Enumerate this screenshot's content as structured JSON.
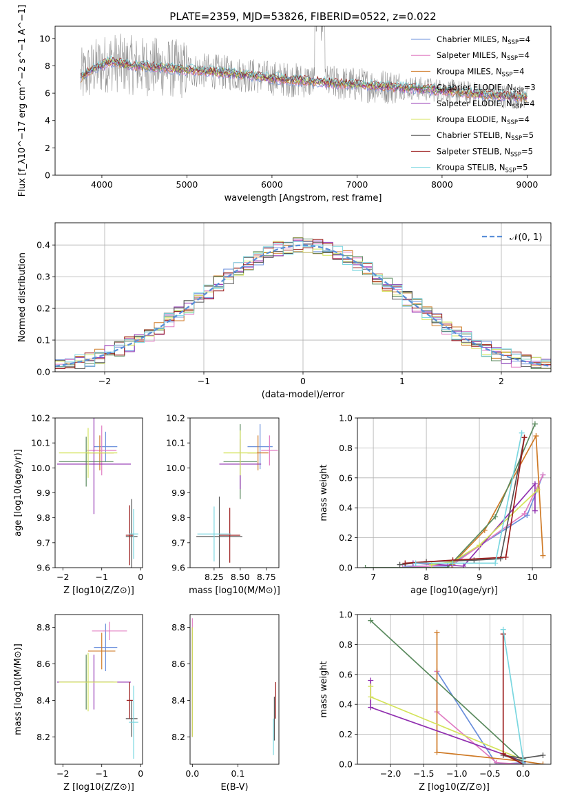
{
  "figure": {
    "title": "PLATE=2359, MJD=53826, FIBERID=0522, z=0.022",
    "colors": [
      "#6a8fdc",
      "#e07bc2",
      "#cf7a26",
      "#5a8a5e",
      "#9030b0",
      "#d4e35a",
      "#555555",
      "#9b1c1c",
      "#7ad7e0"
    ]
  },
  "chart_data": [
    {
      "id": "spectrum",
      "type": "line",
      "title": "PLATE=2359, MJD=53826, FIBERID=0522, z=0.022",
      "xlabel": "wavelength [Angstrom, rest frame]",
      "ylabel": "Flux [f_λ10^−17 erg cm^−2 s^−1 A^−1]",
      "xlim": [
        3450,
        9280
      ],
      "ylim": [
        0,
        10.9
      ],
      "xticks": [
        4000,
        5000,
        6000,
        7000,
        8000,
        9000
      ],
      "yticks": [
        0,
        2,
        4,
        6,
        8,
        10
      ],
      "legend_position": "upper-right",
      "data_color": "#909090",
      "continuum": {
        "x": [
          3750,
          3900,
          4100,
          4400,
          4700,
          5000,
          5300,
          5600,
          6000,
          6400,
          6800,
          7200,
          7600,
          8000,
          8400,
          8800,
          9000
        ],
        "y": [
          7.1,
          7.8,
          8.3,
          8.0,
          7.9,
          7.7,
          7.6,
          7.4,
          7.1,
          6.9,
          6.7,
          6.55,
          6.4,
          6.2,
          5.95,
          5.75,
          5.7
        ]
      },
      "series": [
        {
          "name": "Chabrier MILES",
          "nssp": "4"
        },
        {
          "name": "Salpeter MILES",
          "nssp": "4"
        },
        {
          "name": "Kroupa MILES",
          "nssp": "4"
        },
        {
          "name": "Chabrier ELODIE",
          "nssp": "3"
        },
        {
          "name": "Salpeter ELODIE",
          "nssp": "4"
        },
        {
          "name": "Kroupa ELODIE",
          "nssp": "4"
        },
        {
          "name": "Chabrier STELIB",
          "nssp": "5"
        },
        {
          "name": "Salpeter STELIB",
          "nssp": "5"
        },
        {
          "name": "Kroupa STELIB",
          "nssp": "5"
        }
      ]
    },
    {
      "id": "residuals",
      "type": "bar",
      "xlabel": "(data-model)/error",
      "ylabel": "Normed distribution",
      "xlim": [
        -2.5,
        2.5
      ],
      "ylim": [
        0,
        0.47
      ],
      "xticks": [
        -2,
        -1,
        0,
        1,
        2
      ],
      "yticks": [
        0.0,
        0.1,
        0.2,
        0.3,
        0.4
      ],
      "legend": "𝒩(0, 1)",
      "bin_width": 0.1
    },
    {
      "id": "age_vs_Z",
      "type": "scatter",
      "xlabel": "Z [log10(Z/Z⊙)]",
      "ylabel": "age [log10(age/yr)]",
      "xlim": [
        -2.2,
        0.05
      ],
      "ylim": [
        9.6,
        10.2
      ],
      "xticks": [
        -2,
        -1,
        0
      ],
      "yticks": [
        9.6,
        9.7,
        9.8,
        9.9,
        10.0,
        10.1,
        10.2
      ],
      "points": [
        {
          "x": -0.9,
          "y": 10.085,
          "xerr": 0.3,
          "yerr": 0.06
        },
        {
          "x": -1.0,
          "y": 10.07,
          "xerr": 0.38,
          "yerr": 0.1
        },
        {
          "x": -1.05,
          "y": 10.06,
          "xerr": 0.36,
          "yerr": 0.07
        },
        {
          "x": -1.4,
          "y": 10.025,
          "xerr": 0.7,
          "yerr": 0.1
        },
        {
          "x": -1.2,
          "y": 10.015,
          "xerr": 0.95,
          "yerr": 0.2
        },
        {
          "x": -1.35,
          "y": 10.06,
          "xerr": 0.75,
          "yerr": 0.1
        },
        {
          "x": -0.23,
          "y": 9.725,
          "xerr": 0.15,
          "yerr": 0.15
        },
        {
          "x": -0.28,
          "y": 9.73,
          "xerr": 0.1,
          "yerr": 0.12
        },
        {
          "x": -0.18,
          "y": 9.735,
          "xerr": 0.12,
          "yerr": 0.1
        }
      ]
    },
    {
      "id": "age_vs_mass",
      "type": "scatter",
      "xlabel": "mass [log10(M/M⊙)]",
      "ylabel": "",
      "xlim": [
        8.02,
        8.87
      ],
      "ylim": [
        9.6,
        10.2
      ],
      "xticks": [
        8.25,
        8.5,
        8.75
      ],
      "yticks": [
        9.6,
        9.7,
        9.8,
        9.9,
        10.0,
        10.1,
        10.2
      ],
      "points": [
        {
          "x": 8.69,
          "y": 10.085,
          "xerr": 0.12,
          "yerr": 0.09
        },
        {
          "x": 8.78,
          "y": 10.07,
          "xerr": 0.08,
          "yerr": 0.06
        },
        {
          "x": 8.67,
          "y": 10.06,
          "xerr": 0.1,
          "yerr": 0.07
        },
        {
          "x": 8.5,
          "y": 10.025,
          "xerr": 0.16,
          "yerr": 0.15
        },
        {
          "x": 8.5,
          "y": 10.015,
          "xerr": 0.2,
          "yerr": 0.1
        },
        {
          "x": 8.5,
          "y": 10.06,
          "xerr": 0.16,
          "yerr": 0.09
        },
        {
          "x": 8.3,
          "y": 9.725,
          "xerr": 0.22,
          "yerr": 0.16
        },
        {
          "x": 8.4,
          "y": 9.73,
          "xerr": 0.1,
          "yerr": 0.11
        },
        {
          "x": 8.25,
          "y": 9.735,
          "xerr": 0.16,
          "yerr": 0.11
        }
      ]
    },
    {
      "id": "massweight_vs_age",
      "type": "line",
      "xlabel": "age [log10(age/yr)]",
      "ylabel": "mass weight",
      "xlim": [
        6.7,
        10.35
      ],
      "ylim": [
        0,
        1.0
      ],
      "xticks": [
        7,
        8,
        9,
        10
      ],
      "yticks": [
        0.0,
        0.2,
        0.4,
        0.6,
        0.8,
        1.0
      ],
      "series": [
        {
          "x": [
            7.6,
            8.4,
            9.9,
            10.2
          ],
          "y": [
            0.01,
            0.01,
            0.35,
            0.62
          ]
        },
        {
          "x": [
            7.55,
            8.5,
            9.85,
            10.2
          ],
          "y": [
            0.0,
            0.02,
            0.36,
            0.62
          ]
        },
        {
          "x": [
            8.48,
            9.1,
            10.07,
            10.2
          ],
          "y": [
            0.02,
            0.25,
            0.88,
            0.08
          ]
        },
        {
          "x": [
            6.85,
            8.4,
            9.3,
            10.05
          ],
          "y": [
            0.0,
            0.0,
            0.34,
            0.96
          ]
        },
        {
          "x": [
            7.75,
            8.7,
            10.05,
            10.05
          ],
          "y": [
            0.03,
            0.01,
            0.56,
            0.38
          ]
        },
        {
          "x": [
            8.1,
            8.5,
            9.0,
            10.1
          ],
          "y": [
            0.02,
            0.04,
            0.15,
            0.52
          ]
        },
        {
          "x": [
            7.5,
            8.0,
            8.9,
            9.4,
            9.85
          ],
          "y": [
            0.02,
            0.04,
            0.05,
            0.06,
            0.87
          ]
        },
        {
          "x": [
            7.6,
            8.5,
            9.5,
            9.85
          ],
          "y": [
            0.03,
            0.05,
            0.07,
            0.87
          ]
        },
        {
          "x": [
            7.8,
            8.5,
            9.3,
            9.8
          ],
          "y": [
            0.03,
            0.03,
            0.03,
            0.9
          ]
        }
      ]
    },
    {
      "id": "mass_vs_Z",
      "type": "scatter",
      "xlabel": "Z [log10(Z/Z⊙)]",
      "ylabel": "mass [log10(M/M⊙)]",
      "xlim": [
        -2.2,
        0.05
      ],
      "ylim": [
        8.05,
        8.87
      ],
      "xticks": [
        -2,
        -1,
        0
      ],
      "yticks": [
        8.2,
        8.4,
        8.6,
        8.8
      ],
      "points": [
        {
          "x": -0.9,
          "y": 8.69,
          "xerr": 0.3,
          "yerr": 0.13
        },
        {
          "x": -0.8,
          "y": 8.78,
          "xerr": 0.45,
          "yerr": 0.05
        },
        {
          "x": -1.0,
          "y": 8.67,
          "xerr": 0.35,
          "yerr": 0.1
        },
        {
          "x": -1.4,
          "y": 8.5,
          "xerr": 0.7,
          "yerr": 0.15
        },
        {
          "x": -1.2,
          "y": 8.5,
          "xerr": 0.95,
          "yerr": 0.15
        },
        {
          "x": -1.35,
          "y": 8.5,
          "xerr": 0.75,
          "yerr": 0.16
        },
        {
          "x": -0.23,
          "y": 8.3,
          "xerr": 0.15,
          "yerr": 0.1
        },
        {
          "x": -0.28,
          "y": 8.4,
          "xerr": 0.08,
          "yerr": 0.1
        },
        {
          "x": -0.18,
          "y": 8.28,
          "xerr": 0.12,
          "yerr": 0.2
        }
      ]
    },
    {
      "id": "mass_vs_ebv",
      "type": "scatter",
      "xlabel": "E(B-V)",
      "ylabel": "",
      "xlim": [
        -0.005,
        0.19
      ],
      "ylim": [
        8.05,
        8.87
      ],
      "xticks": [
        0.0,
        0.1
      ],
      "yticks": [
        8.2,
        8.4,
        8.6,
        8.8
      ],
      "points": [
        {
          "x": 0.0,
          "y": 8.69,
          "xerr": 0.0,
          "yerr": 0.08
        },
        {
          "x": 0.0,
          "y": 8.78,
          "xerr": 0.0,
          "yerr": 0.07
        },
        {
          "x": 0.0,
          "y": 8.67,
          "xerr": 0.0,
          "yerr": 0.1
        },
        {
          "x": 0.0,
          "y": 8.5,
          "xerr": 0.0,
          "yerr": 0.3
        },
        {
          "x": 0.0,
          "y": 8.5,
          "xerr": 0.0,
          "yerr": 0.3
        },
        {
          "x": 0.0,
          "y": 8.5,
          "xerr": 0.0,
          "yerr": 0.3
        },
        {
          "x": 0.18,
          "y": 8.3,
          "xerr": 0.0,
          "yerr": 0.12
        },
        {
          "x": 0.183,
          "y": 8.4,
          "xerr": 0.0,
          "yerr": 0.1
        },
        {
          "x": 0.178,
          "y": 8.2,
          "xerr": 0.0,
          "yerr": 0.1
        }
      ]
    },
    {
      "id": "massweight_vs_Z",
      "type": "line",
      "xlabel": "Z [log10(Z/Z⊙)]",
      "ylabel": "mass weight",
      "xlim": [
        -2.5,
        0.42
      ],
      "ylim": [
        0,
        1.0
      ],
      "xticks": [
        -2.0,
        -1.5,
        -1.0,
        -0.5,
        0.0
      ],
      "yticks": [
        0.0,
        0.2,
        0.4,
        0.6,
        0.8,
        1.0
      ],
      "series": [
        {
          "x": [
            -1.3,
            -0.4,
            0.0
          ],
          "y": [
            0.62,
            0.0,
            0.01
          ]
        },
        {
          "x": [
            -1.3,
            -1.3,
            -0.4,
            0.0
          ],
          "y": [
            0.62,
            0.35,
            0.01,
            0.0
          ]
        },
        {
          "x": [
            -1.3,
            -1.3,
            0.0,
            0.3
          ],
          "y": [
            0.88,
            0.08,
            0.02,
            0.0
          ]
        },
        {
          "x": [
            -2.3,
            0.0,
            0.0
          ],
          "y": [
            0.96,
            0.02,
            0.0
          ]
        },
        {
          "x": [
            -2.3,
            -2.3,
            0.0
          ],
          "y": [
            0.56,
            0.38,
            0.02
          ]
        },
        {
          "x": [
            -2.3,
            -2.3,
            0.0
          ],
          "y": [
            0.52,
            0.45,
            0.03
          ]
        },
        {
          "x": [
            0.0,
            -0.3,
            0.0,
            0.3
          ],
          "y": [
            0.02,
            0.06,
            0.04,
            0.06
          ]
        },
        {
          "x": [
            -0.3,
            -0.3,
            0.0
          ],
          "y": [
            0.87,
            0.07,
            0.0
          ]
        },
        {
          "x": [
            -0.3,
            0.0,
            0.0
          ],
          "y": [
            0.9,
            0.03,
            0.0
          ]
        }
      ]
    }
  ]
}
